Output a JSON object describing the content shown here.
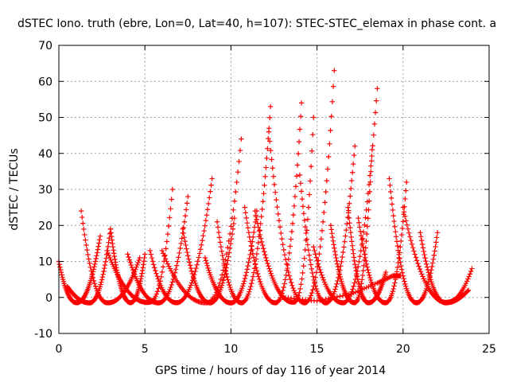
{
  "chart_data": {
    "type": "scatter",
    "title": "dSTEC Iono. truth (ebre, Lon=0, Lat=40, h=107): STEC-STEC_elemax in phase cont. a",
    "xlabel": "GPS time / hours of day 116 of year 2014",
    "ylabel": "dSTEC  / TECUs",
    "xlim": [
      0,
      25
    ],
    "ylim": [
      -10,
      70
    ],
    "xticks": [
      0,
      5,
      10,
      15,
      20,
      25
    ],
    "yticks": [
      -10,
      0,
      10,
      20,
      30,
      40,
      50,
      60,
      70
    ],
    "grid": true,
    "marker": "+",
    "color": "#ff0000",
    "arcs": [
      {
        "start": 0.0,
        "end": 2.4,
        "min_x": 1.0,
        "left_peak": 10,
        "right_peak": 17
      },
      {
        "start": 1.3,
        "end": 4.7,
        "min_x": 2.8,
        "left_peak": 24,
        "right_peak": 11
      },
      {
        "start": 0.5,
        "end": 3.0,
        "min_x": 1.8,
        "left_peak": 3,
        "right_peak": 19
      },
      {
        "start": 3.0,
        "end": 5.0,
        "min_x": 4.2,
        "left_peak": 19,
        "right_peak": 12
      },
      {
        "start": 2.8,
        "end": 6.6,
        "min_x": 5.3,
        "left_peak": 13,
        "right_peak": 30
      },
      {
        "start": 4.0,
        "end": 7.5,
        "min_x": 5.8,
        "left_peak": 12,
        "right_peak": 28
      },
      {
        "start": 5.3,
        "end": 8.9,
        "min_x": 6.8,
        "left_peak": 13,
        "right_peak": 33
      },
      {
        "start": 6.0,
        "end": 10.6,
        "min_x": 8.6,
        "left_peak": 13,
        "right_peak": 44
      },
      {
        "start": 7.2,
        "end": 10.2,
        "min_x": 8.8,
        "left_peak": 19,
        "right_peak": 22
      },
      {
        "start": 8.5,
        "end": 11.5,
        "min_x": 10.0,
        "left_peak": 11,
        "right_peak": 24
      },
      {
        "start": 9.2,
        "end": 12.3,
        "min_x": 10.6,
        "left_peak": 21,
        "right_peak": 53
      },
      {
        "start": 10.8,
        "end": 14.1,
        "min_x": 12.6,
        "left_peak": 25,
        "right_peak": 54
      },
      {
        "start": 11.4,
        "end": 14.8,
        "min_x": 13.7,
        "left_peak": 24,
        "right_peak": 50
      },
      {
        "start": 12.2,
        "end": 16.0,
        "min_x": 14.3,
        "left_peak": 46,
        "right_peak": 63
      },
      {
        "start": 14.0,
        "end": 17.2,
        "min_x": 15.5,
        "left_peak": 34,
        "right_peak": 42
      },
      {
        "start": 14.8,
        "end": 18.5,
        "min_x": 16.5,
        "left_peak": 14,
        "right_peak": 58
      },
      {
        "start": 15.8,
        "end": 18.2,
        "min_x": 17.2,
        "left_peak": 20,
        "right_peak": 41
      },
      {
        "start": 16.8,
        "end": 19.0,
        "min_x": 18.0,
        "left_peak": 25,
        "right_peak": 7
      },
      {
        "start": 17.4,
        "end": 20.2,
        "min_x": 19.0,
        "left_peak": 22,
        "right_peak": 32
      },
      {
        "start": 19.2,
        "end": 22.0,
        "min_x": 20.8,
        "left_peak": 33,
        "right_peak": 18
      },
      {
        "start": 20.0,
        "end": 24.0,
        "min_x": 22.6,
        "left_peak": 25,
        "right_peak": 8
      },
      {
        "start": 21.0,
        "end": 23.8,
        "min_x": 22.5,
        "left_peak": 18,
        "right_peak": 2
      }
    ],
    "extra_series": [
      {
        "x": [
          13.0,
          15.0,
          17.0,
          18.5,
          19.4,
          19.9
        ],
        "y": [
          0,
          -1,
          1,
          4,
          6,
          6
        ]
      }
    ]
  }
}
